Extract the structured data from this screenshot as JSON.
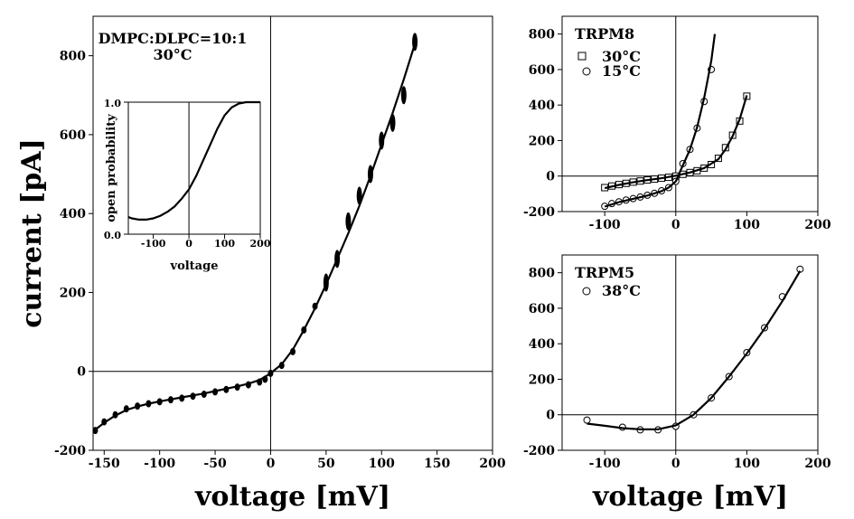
{
  "chart_data": [
    {
      "id": "main",
      "type": "scatter",
      "xlabel": "voltage [mV]",
      "ylabel": "current [pA]",
      "xlim": [
        -160,
        200
      ],
      "ylim": [
        -200,
        900
      ],
      "xticks": [
        -150,
        -100,
        -50,
        0,
        50,
        100,
        150,
        200
      ],
      "yticks": [
        -200,
        0,
        200,
        400,
        600,
        800
      ],
      "annotation": [
        "DMPC:DLPC=10:1",
        "30°C"
      ],
      "series": [
        {
          "kind": "points",
          "x": [
            -158,
            -150,
            -140,
            -130,
            -120,
            -110,
            -100,
            -90,
            -80,
            -70,
            -60,
            -50,
            -40,
            -30,
            -20,
            -10,
            -5,
            0,
            10,
            20,
            30,
            40,
            50,
            60,
            70,
            80,
            90,
            100,
            110,
            120,
            130
          ],
          "y": [
            -150,
            -128,
            -110,
            -95,
            -88,
            -82,
            -77,
            -72,
            -68,
            -63,
            -58,
            -52,
            -46,
            -40,
            -34,
            -27,
            -20,
            -5,
            15,
            50,
            105,
            165,
            225,
            285,
            380,
            445,
            500,
            585,
            630,
            700,
            835
          ]
        },
        {
          "kind": "line",
          "x": [
            -160,
            -150,
            -140,
            -130,
            -120,
            -110,
            -100,
            -90,
            -80,
            -70,
            -60,
            -50,
            -40,
            -30,
            -20,
            -10,
            0,
            10,
            20,
            30,
            40,
            50,
            60,
            70,
            80,
            90,
            100,
            110,
            120,
            130
          ],
          "y": [
            -152,
            -130,
            -112,
            -98,
            -89,
            -82,
            -76,
            -71,
            -66,
            -61,
            -56,
            -50,
            -44,
            -38,
            -31,
            -22,
            -5,
            18,
            55,
            105,
            160,
            220,
            285,
            350,
            420,
            495,
            575,
            655,
            740,
            830
          ]
        }
      ]
    },
    {
      "id": "inset",
      "type": "line",
      "xlabel": "voltage",
      "ylabel": "open probability",
      "xlim": [
        -170,
        200
      ],
      "ylim": [
        0,
        1
      ],
      "xticks": [
        -100,
        0,
        100,
        200
      ],
      "yticks": [
        0,
        1
      ],
      "ytick_labels": [
        "0.0",
        "1.0"
      ],
      "series": [
        {
          "kind": "line",
          "x": [
            -170,
            -160,
            -140,
            -120,
            -100,
            -80,
            -60,
            -40,
            -20,
            0,
            20,
            40,
            60,
            80,
            100,
            120,
            140,
            160,
            180,
            200
          ],
          "y": [
            0.13,
            0.12,
            0.11,
            0.11,
            0.12,
            0.14,
            0.17,
            0.21,
            0.27,
            0.34,
            0.44,
            0.56,
            0.68,
            0.8,
            0.9,
            0.96,
            0.99,
            1.0,
            1.0,
            1.0
          ]
        }
      ]
    },
    {
      "id": "trpm8",
      "type": "scatter",
      "xlim": [
        -160,
        200
      ],
      "ylim": [
        -200,
        900
      ],
      "xticks": [
        -100,
        0,
        100,
        200
      ],
      "yticks": [
        -200,
        0,
        200,
        400,
        600,
        800
      ],
      "annotation": "TRPM8",
      "series": [
        {
          "name": "30°C",
          "marker": "square",
          "x": [
            -100,
            -90,
            -80,
            -70,
            -60,
            -50,
            -40,
            -30,
            -20,
            -10,
            0,
            10,
            20,
            30,
            40,
            50,
            60,
            70,
            80,
            90,
            100
          ],
          "y": [
            -65,
            -56,
            -48,
            -41,
            -34,
            -28,
            -22,
            -17,
            -12,
            -7,
            0,
            10,
            20,
            30,
            45,
            65,
            100,
            160,
            230,
            310,
            450
          ]
        },
        {
          "kind": "line",
          "x": [
            -100,
            -80,
            -60,
            -40,
            -20,
            0,
            20,
            40,
            60,
            70,
            80,
            90,
            100
          ],
          "y": [
            -68,
            -50,
            -35,
            -23,
            -12,
            2,
            20,
            45,
            95,
            150,
            225,
            320,
            455
          ]
        },
        {
          "name": "15°C",
          "marker": "circle",
          "x": [
            -100,
            -90,
            -80,
            -70,
            -60,
            -50,
            -40,
            -30,
            -20,
            -10,
            0,
            10,
            20,
            30,
            40,
            50
          ],
          "y": [
            -170,
            -155,
            -145,
            -135,
            -127,
            -118,
            -108,
            -97,
            -83,
            -65,
            -30,
            70,
            150,
            270,
            420,
            600
          ]
        },
        {
          "kind": "line",
          "x": [
            -100,
            -80,
            -60,
            -40,
            -20,
            -10,
            0,
            10,
            20,
            30,
            40,
            50,
            55
          ],
          "y": [
            -172,
            -147,
            -128,
            -110,
            -85,
            -65,
            -30,
            60,
            150,
            275,
            440,
            650,
            800
          ]
        }
      ]
    },
    {
      "id": "trpm5",
      "type": "scatter",
      "xlim": [
        -160,
        200
      ],
      "ylim": [
        -200,
        900
      ],
      "xticks": [
        -100,
        0,
        100,
        200
      ],
      "yticks": [
        -200,
        0,
        200,
        400,
        600,
        800
      ],
      "xlabel": "voltage [mV]",
      "annotation": "TRPM5",
      "series": [
        {
          "name": "38°C",
          "marker": "circle",
          "x": [
            -125,
            -75,
            -50,
            -25,
            0,
            25,
            50,
            75,
            100,
            125,
            150,
            175
          ],
          "y": [
            -30,
            -70,
            -85,
            -85,
            -65,
            0,
            95,
            215,
            350,
            490,
            665,
            820
          ]
        },
        {
          "kind": "line",
          "x": [
            -125,
            -100,
            -75,
            -50,
            -25,
            0,
            25,
            50,
            75,
            100,
            125,
            150,
            175
          ],
          "y": [
            -50,
            -62,
            -75,
            -82,
            -82,
            -60,
            0,
            95,
            215,
            345,
            485,
            640,
            810
          ]
        }
      ]
    }
  ]
}
